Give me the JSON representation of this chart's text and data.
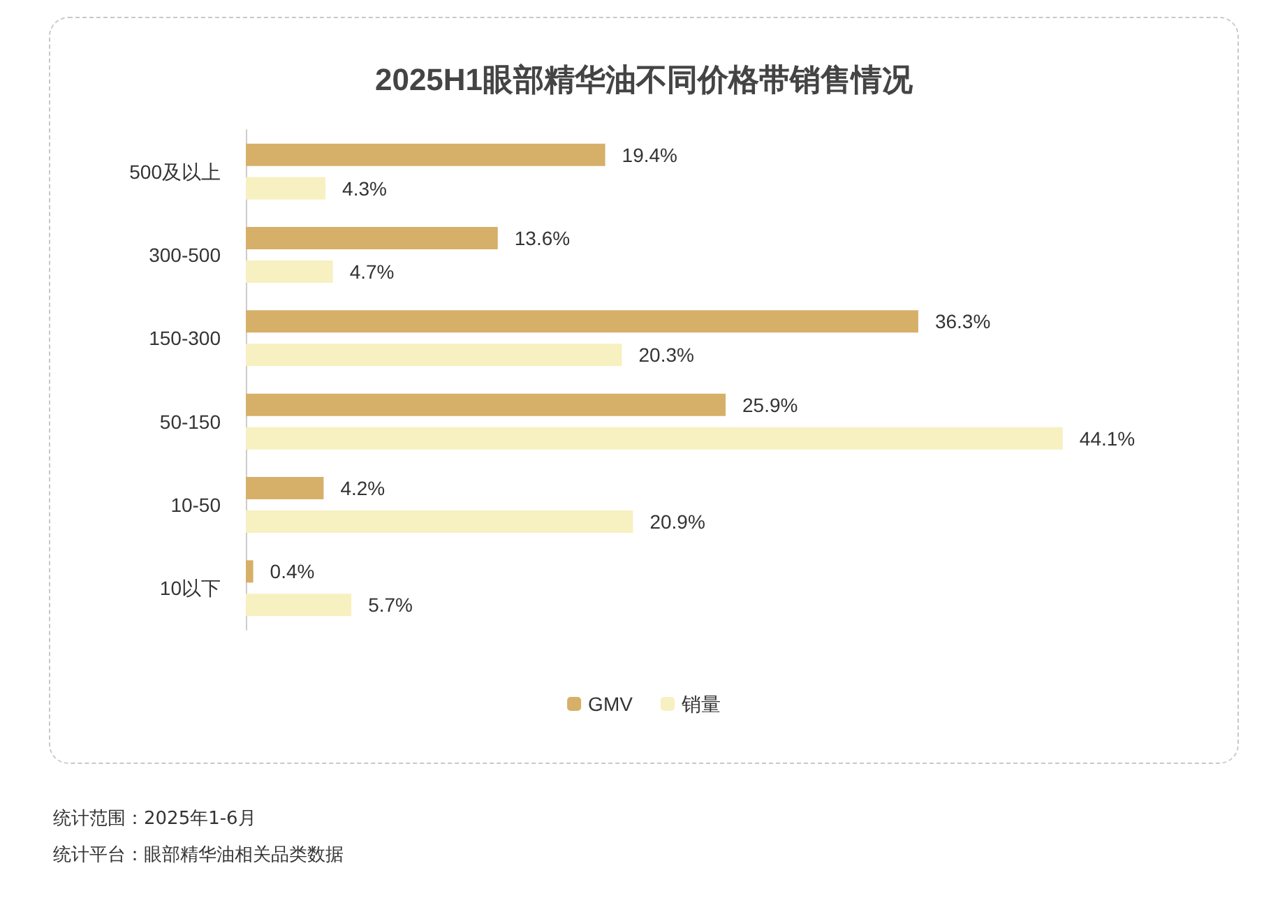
{
  "chart_data": {
    "type": "bar",
    "orientation": "horizontal",
    "title": "2025H1眼部精华油不同价格带销售情况",
    "categories": [
      "500及以上",
      "300-500",
      "150-300",
      "50-150",
      "10-50",
      "10以下"
    ],
    "series": [
      {
        "name": "GMV",
        "color": "#d6b068",
        "values": [
          19.4,
          13.6,
          36.3,
          25.9,
          4.2,
          0.4
        ],
        "value_labels": [
          "19.4%",
          "13.6%",
          "36.3%",
          "25.9%",
          "4.2%",
          "0.4%"
        ]
      },
      {
        "name": "销量",
        "color": "#f7f0c0",
        "values": [
          4.3,
          4.7,
          20.3,
          44.1,
          20.9,
          5.7
        ],
        "value_labels": [
          "4.3%",
          "4.7%",
          "20.3%",
          "44.1%",
          "20.9%",
          "5.7%"
        ]
      }
    ],
    "legend": "bottom",
    "annotations": [
      "统计范围：2025年1-6月",
      "统计平台：眼部精华油相关品类数据"
    ]
  }
}
